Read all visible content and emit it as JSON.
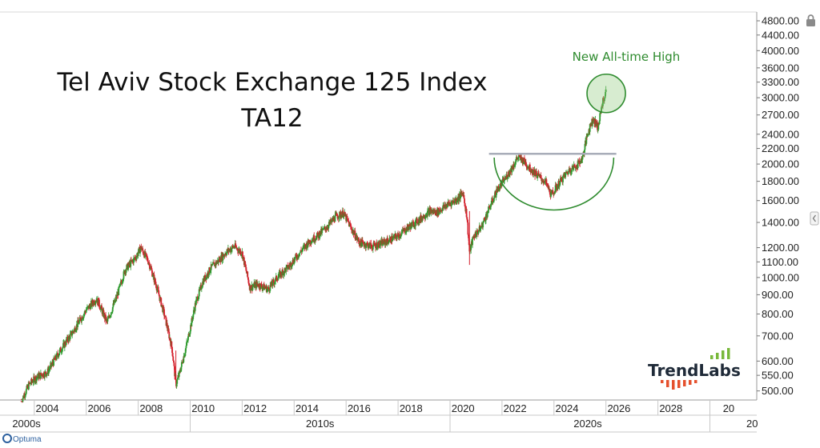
{
  "chart_data": {
    "type": "candlestick",
    "title": "Tel Aviv Stock Exchange 125 Index",
    "subtitle": "TA12",
    "y_scale": "log",
    "ylim": [
      470,
      5000
    ],
    "xlim": [
      2003.0,
      2030.0
    ],
    "y_ticks": [
      "500.00",
      "550.00",
      "600.00",
      "700.00",
      "800.00",
      "900.00",
      "1000.00",
      "1100.00",
      "1200.00",
      "1400.00",
      "1600.00",
      "1800.00",
      "2000.00",
      "2200.00",
      "2400.00",
      "2700.00",
      "3000.00",
      "3300.00",
      "3600.00",
      "4000.00",
      "4400.00",
      "4800.00"
    ],
    "x_ticks": [
      "2004",
      "2006",
      "2008",
      "2010",
      "2012",
      "2014",
      "2016",
      "2018",
      "2020",
      "2022",
      "2024",
      "2026",
      "2028",
      "20"
    ],
    "decades": [
      "2000s",
      "2010s",
      "2020s",
      "20"
    ],
    "colors": {
      "up": "#2e9a2e",
      "down": "#d4202c",
      "annotation": "#2e8b2e",
      "resistance": "#a8adb9"
    },
    "series_path": [
      [
        2003.0,
        470
      ],
      [
        2003.3,
        520
      ],
      [
        2003.6,
        545
      ],
      [
        2004.0,
        560
      ],
      [
        2004.5,
        640
      ],
      [
        2005.0,
        720
      ],
      [
        2005.5,
        820
      ],
      [
        2005.9,
        880
      ],
      [
        2006.3,
        760
      ],
      [
        2006.7,
        900
      ],
      [
        2007.0,
        1050
      ],
      [
        2007.4,
        1130
      ],
      [
        2007.6,
        1200
      ],
      [
        2007.9,
        1100
      ],
      [
        2008.2,
        950
      ],
      [
        2008.5,
        800
      ],
      [
        2008.8,
        650
      ],
      [
        2008.95,
        520
      ],
      [
        2009.1,
        560
      ],
      [
        2009.4,
        680
      ],
      [
        2009.7,
        850
      ],
      [
        2010.0,
        980
      ],
      [
        2010.3,
        1060
      ],
      [
        2010.6,
        1110
      ],
      [
        2010.9,
        1170
      ],
      [
        2011.2,
        1210
      ],
      [
        2011.5,
        1160
      ],
      [
        2011.8,
        940
      ],
      [
        2012.1,
        960
      ],
      [
        2012.5,
        930
      ],
      [
        2012.9,
        1010
      ],
      [
        2013.3,
        1070
      ],
      [
        2013.7,
        1160
      ],
      [
        2014.1,
        1250
      ],
      [
        2014.4,
        1290
      ],
      [
        2014.8,
        1370
      ],
      [
        2015.1,
        1450
      ],
      [
        2015.4,
        1480
      ],
      [
        2015.7,
        1350
      ],
      [
        2016.0,
        1240
      ],
      [
        2016.5,
        1210
      ],
      [
        2017.0,
        1240
      ],
      [
        2017.5,
        1290
      ],
      [
        2017.9,
        1360
      ],
      [
        2018.3,
        1420
      ],
      [
        2018.7,
        1500
      ],
      [
        2019.0,
        1490
      ],
      [
        2019.4,
        1560
      ],
      [
        2019.8,
        1620
      ],
      [
        2020.0,
        1680
      ],
      [
        2020.15,
        1450
      ],
      [
        2020.25,
        1170
      ],
      [
        2020.4,
        1280
      ],
      [
        2020.7,
        1360
      ],
      [
        2021.0,
        1520
      ],
      [
        2021.3,
        1700
      ],
      [
        2021.6,
        1820
      ],
      [
        2021.9,
        1960
      ],
      [
        2022.1,
        2080
      ],
      [
        2022.3,
        2050
      ],
      [
        2022.6,
        1940
      ],
      [
        2022.9,
        1860
      ],
      [
        2023.2,
        1780
      ],
      [
        2023.4,
        1650
      ],
      [
        2023.6,
        1740
      ],
      [
        2023.9,
        1860
      ],
      [
        2024.1,
        1930
      ],
      [
        2024.4,
        1990
      ],
      [
        2024.6,
        2080
      ],
      [
        2024.8,
        2420
      ],
      [
        2025.0,
        2640
      ],
      [
        2025.2,
        2500
      ],
      [
        2025.35,
        2880
      ],
      [
        2025.5,
        3100
      ]
    ],
    "annotations": {
      "label": "New All-time High",
      "resistance_level": 2130,
      "resistance_from": 2021.0,
      "resistance_to": 2025.9,
      "circle_center": [
        2025.45,
        3050
      ],
      "cup_from": 2021.2,
      "cup_to": 2025.8,
      "cup_top": 2080,
      "cup_bottom": 1510
    }
  },
  "watermark": {
    "text": "TrendLabs",
    "bars_up_color": "#78b83a",
    "bars_down_color": "#e5502d"
  },
  "footer": {
    "brand": "Optuma"
  },
  "icons": {
    "lock": "lock-icon",
    "scroll": "scroll-handle-icon"
  }
}
